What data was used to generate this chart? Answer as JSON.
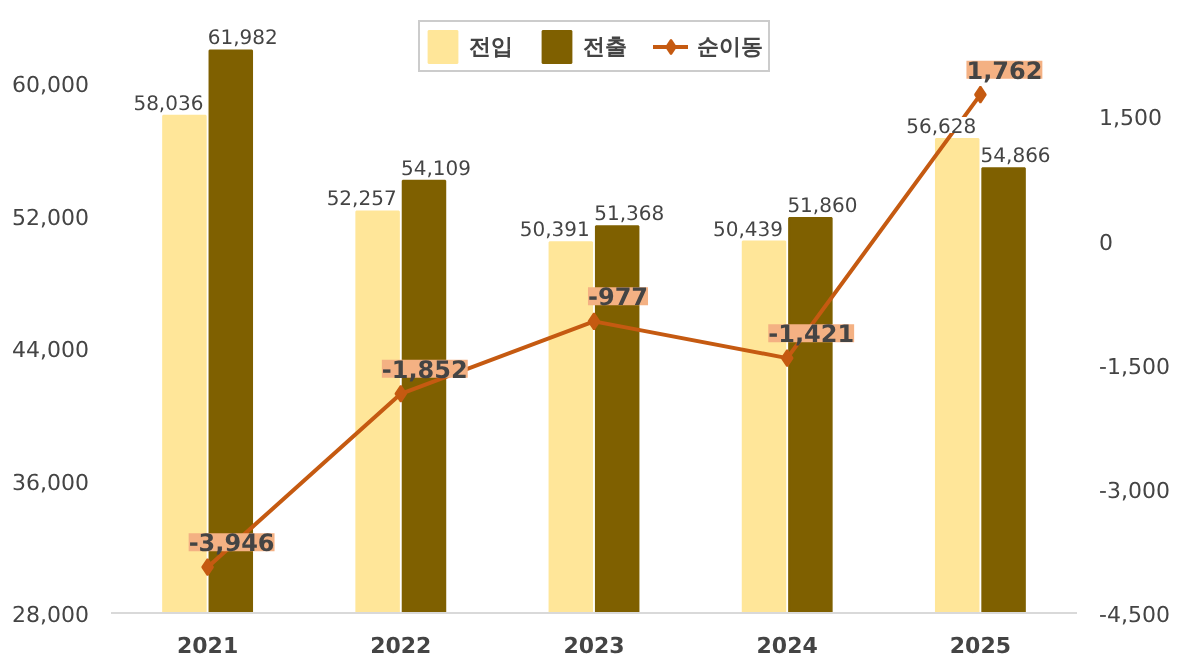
{
  "chart_data": {
    "type": "bar",
    "categories": [
      "2021",
      "2022",
      "2023",
      "2024",
      "2025"
    ],
    "series": [
      {
        "name": "전입",
        "color": "#ffe699",
        "values": [
          58036,
          52257,
          50391,
          50439,
          56628
        ],
        "value_labels": [
          "58,036",
          "52,257",
          "50,391",
          "50,439",
          "56,628"
        ]
      },
      {
        "name": "전출",
        "color": "#7f6000",
        "values": [
          61982,
          54109,
          51368,
          51860,
          54866
        ],
        "value_labels": [
          "61,982",
          "54,109",
          "51,368",
          "51,860",
          "54,866"
        ]
      },
      {
        "name": "순이동",
        "type": "line",
        "axis": "y2",
        "color": "#c55a11",
        "marker": "diamond",
        "values": [
          -3946,
          -1852,
          -977,
          -1421,
          1762
        ],
        "value_labels": [
          "-3,946",
          "-1,852",
          "-977",
          "-1,421",
          "1,762"
        ]
      }
    ],
    "ylim": [
      28000,
      64000
    ],
    "yticks": [
      {
        "value": 28000,
        "label": "28,000"
      },
      {
        "value": 36000,
        "label": "36,000"
      },
      {
        "value": 44000,
        "label": "44,000"
      },
      {
        "value": 52000,
        "label": "52,000"
      },
      {
        "value": 60000,
        "label": "60,000"
      }
    ],
    "y2lim": [
      -4500,
      2700
    ],
    "y2ticks": [
      {
        "value": -4500,
        "label": "-4,500"
      },
      {
        "value": -3000,
        "label": "-3,000"
      },
      {
        "value": -1500,
        "label": "-1,500"
      },
      0,
      {
        "value": 1500,
        "label": "1,500"
      }
    ],
    "legend": "top",
    "grid": false
  }
}
